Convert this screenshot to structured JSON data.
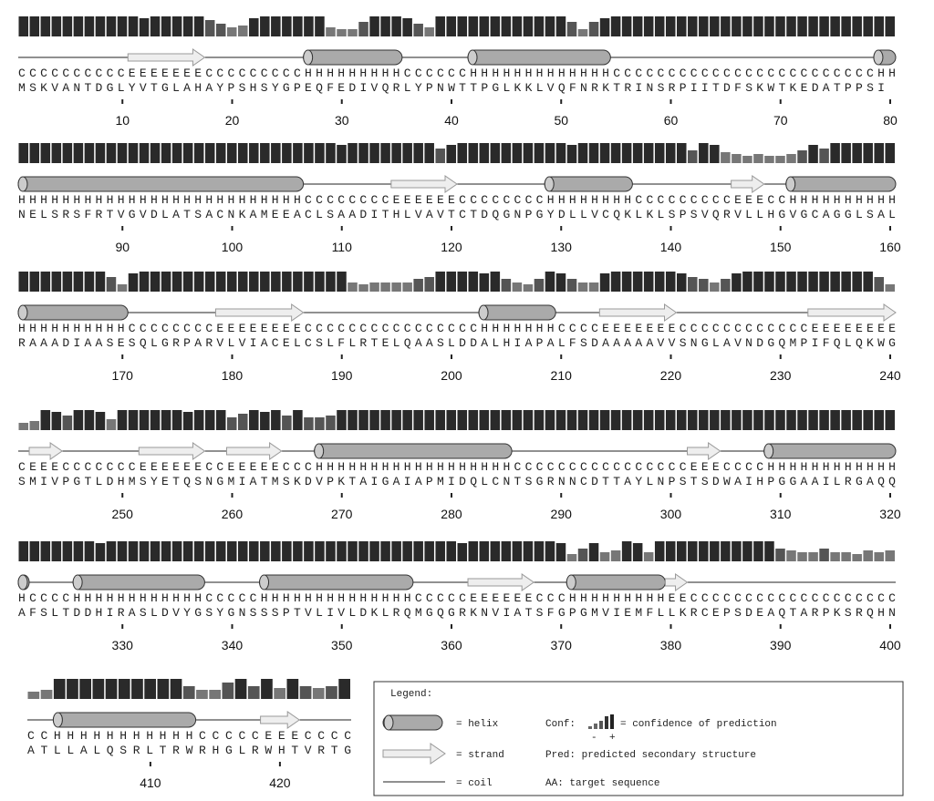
{
  "rows": [
    {
      "conf": [
        9,
        9,
        9,
        9,
        9,
        9,
        9,
        9,
        9,
        9,
        9,
        8,
        9,
        9,
        9,
        9,
        9,
        7,
        5,
        3,
        4,
        8,
        9,
        9,
        9,
        9,
        9,
        9,
        3,
        2,
        2,
        6,
        9,
        9,
        9,
        8,
        5,
        3,
        9,
        9,
        9,
        9,
        9,
        9,
        9,
        9,
        9,
        9,
        9,
        9,
        6,
        2,
        6,
        8,
        9,
        9,
        9,
        9,
        9,
        9,
        9,
        9,
        9,
        9,
        9,
        9,
        9,
        9,
        9,
        9,
        9,
        9,
        9,
        9,
        9,
        9,
        9,
        9,
        9,
        9
      ],
      "pred": "CCCCCCCCCCEEEEEEECCCCCCCCCHHHHHHHHHCCCCCCHHHHHHHHHHHHHCCCCCCCCCCCCCCCCCCCCCCCCHH",
      "aa": "MSKVANTDGLYVTGLAHAYPSHSYGPEQFEDIVQRLYPNWTTPGLKKLVQFNRKTRINSRPIITDFSKWTKEDATPPSI",
      "ticks": [
        10,
        20,
        30,
        40,
        50,
        60,
        70,
        80
      ]
    },
    {
      "conf": [
        9,
        9,
        9,
        9,
        9,
        9,
        9,
        9,
        9,
        9,
        9,
        9,
        9,
        9,
        9,
        9,
        9,
        9,
        9,
        9,
        9,
        9,
        9,
        9,
        9,
        9,
        9,
        9,
        9,
        8,
        9,
        9,
        9,
        9,
        9,
        9,
        9,
        9,
        6,
        8,
        9,
        9,
        9,
        9,
        9,
        9,
        9,
        9,
        9,
        9,
        8,
        9,
        9,
        9,
        9,
        9,
        9,
        9,
        9,
        9,
        9,
        5,
        9,
        8,
        4,
        3,
        2,
        3,
        2,
        2,
        3,
        5,
        8,
        6,
        9,
        9,
        9,
        9,
        9,
        9
      ],
      "pred": "HHHHHHHHHHHHHHHHHHHHHHHHHHCCCCCCCCEEEEEECCCCCCCCHHHHHHHHCCCCCCCCCEEECCHHHHHHHHHH",
      "aa": "NELSRSFRTVGVDLATSACNKAMEEACLSAADITHLVAVTCTDQGNPGYDLLVCQKLKLSPSVQRVLLHGVGCAGGLSAL",
      "ticks": [
        90,
        100,
        110,
        120,
        130,
        140,
        150,
        160
      ]
    },
    {
      "conf": [
        9,
        9,
        9,
        9,
        9,
        9,
        9,
        9,
        6,
        2,
        8,
        9,
        9,
        9,
        9,
        9,
        9,
        9,
        9,
        9,
        9,
        9,
        9,
        9,
        9,
        9,
        9,
        9,
        9,
        9,
        3,
        2,
        3,
        3,
        3,
        3,
        5,
        6,
        9,
        9,
        9,
        9,
        8,
        9,
        5,
        3,
        2,
        5,
        9,
        8,
        5,
        3,
        3,
        8,
        9,
        9,
        9,
        9,
        9,
        9,
        8,
        6,
        5,
        3,
        5,
        8,
        9,
        9,
        9,
        9,
        9,
        9,
        9,
        9,
        9,
        9,
        9,
        9,
        6,
        2
      ],
      "pred": "HHHHHHHHHHCCCCCCCCEEEEEEEECCCCCCCCCCCCCCCCHHHHHHHCCCCEEEEEEECCCCCCCCCCCCEEEEEEEE",
      "aa": "RAAADIAASESQLGRPARVLVIACELCSLFLRTELQAASLDDALHIAPALFSDAAAAAVVSNGLAVNDGQMPIFQLQKWG",
      "ticks": [
        170,
        180,
        190,
        200,
        210,
        220,
        230,
        240
      ]
    },
    {
      "conf": [
        2,
        3,
        9,
        8,
        6,
        9,
        9,
        8,
        4,
        9,
        9,
        9,
        9,
        9,
        9,
        8,
        9,
        9,
        9,
        5,
        7,
        9,
        8,
        9,
        6,
        9,
        5,
        5,
        6,
        9,
        9,
        9,
        9,
        9,
        9,
        9,
        9,
        9,
        9,
        9,
        9,
        9,
        9,
        9,
        9,
        9,
        9,
        9,
        9,
        9,
        9,
        9,
        9,
        9,
        9,
        9,
        9,
        9,
        9,
        9,
        9,
        9,
        9,
        9,
        9,
        9,
        9,
        9,
        9,
        9,
        9,
        9,
        9,
        9,
        9,
        9,
        9,
        9,
        9,
        9
      ],
      "pred": "CEEECCCCCCCEEEEEECCEEEEECCCHHHHHHHHHHHHHHHHHHCCCCCCCCCCCCCCCCEEECCCCHHHHHHHHHHHH",
      "aa": "SMIVPGTLDHMSYETQSNGMIATMSKDVPKTAIGAIAPMIDQLCNTSGRNNCDTTAYLNPSTSDWAIHPGGAAILRGAQQ",
      "ticks": [
        250,
        260,
        270,
        280,
        290,
        300,
        310,
        320
      ]
    },
    {
      "conf": [
        9,
        9,
        9,
        9,
        9,
        9,
        9,
        8,
        9,
        9,
        9,
        9,
        9,
        9,
        9,
        9,
        9,
        9,
        9,
        9,
        9,
        9,
        9,
        9,
        9,
        9,
        9,
        9,
        9,
        9,
        9,
        9,
        9,
        9,
        9,
        9,
        9,
        9,
        9,
        9,
        8,
        9,
        9,
        9,
        9,
        9,
        9,
        9,
        9,
        8,
        2,
        5,
        8,
        3,
        4,
        9,
        8,
        3,
        9,
        9,
        9,
        9,
        9,
        9,
        9,
        9,
        9,
        9,
        9,
        5,
        4,
        3,
        3,
        5,
        3,
        3,
        2,
        4,
        3,
        4
      ],
      "pred": "HCCCCHHHHHHHHHHHHCCCCCHHHHHHHHHHHHHHCCCCCEEEEEECCCHHHHHHHHHEECCCCCCCCCCCCCCCCCCC",
      "aa": "AFSLTDDHIRASLDVYGSYGNSSSPTVLIVLDKLRQMGQGRKNVIATSFGPGMVIEMFLLKRCEPSDEAQTARPKSRQHN",
      "ticks": [
        330,
        340,
        350,
        360,
        370,
        380,
        390,
        400
      ]
    },
    {
      "conf": [
        2,
        3,
        9,
        9,
        9,
        9,
        9,
        9,
        9,
        9,
        9,
        9,
        5,
        3,
        3,
        7,
        9,
        5,
        9,
        4,
        9,
        5,
        4,
        5,
        9
      ],
      "pred": "CCHHHHHHHHHHHCCCCCEEECCCC",
      "aa": "ATLLALQSRLTRWRHGLRWHTVRTG",
      "ticks": [
        410,
        420
      ]
    }
  ],
  "legend": {
    "title": "Legend:",
    "helix": "= helix",
    "strand": "= strand",
    "coil": "= coil",
    "conf_label": "Conf:",
    "conf_text": "= confidence of prediction",
    "minus": "-",
    "plus": "+",
    "pred": "Pred: predicted secondary structure",
    "aa": "AA: target sequence"
  }
}
